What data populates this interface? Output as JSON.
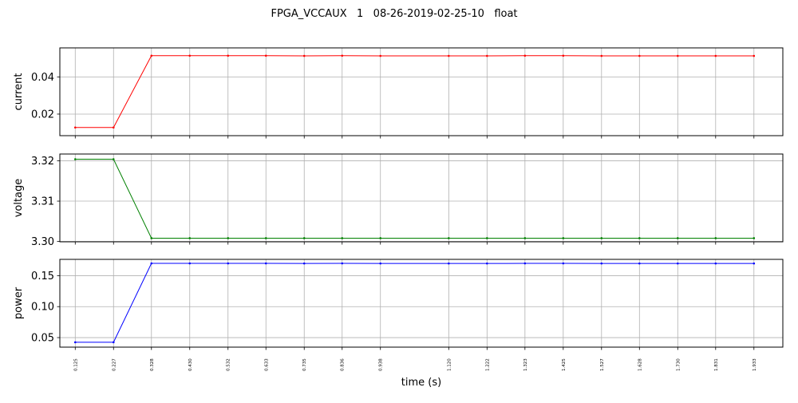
{
  "chart_data": {
    "type": "line",
    "title": "FPGA_VCCAUX   1   08-26-2019-02-25-10   float",
    "xlabel": "time (s)",
    "x": [
      0.125,
      0.227,
      0.328,
      0.43,
      0.532,
      0.633,
      0.735,
      0.836,
      0.938,
      1.12,
      1.222,
      1.323,
      1.425,
      1.527,
      1.628,
      1.73,
      1.831,
      1.933
    ],
    "x_tick_labels": [
      "0.125",
      "0.227",
      "0.328",
      "0.430",
      "0.532",
      "0.633",
      "0.735",
      "0.836",
      "0.938",
      "1.120",
      "1.222",
      "1.323",
      "1.425",
      "1.527",
      "1.628",
      "1.730",
      "1.831",
      "1.933"
    ],
    "xlim": [
      0.084,
      2.01
    ],
    "grid": true,
    "subplots": [
      {
        "ylabel": "current",
        "color": "#ff0000",
        "ylim": [
          0.0084,
          0.0556
        ],
        "yticks": [
          0.02,
          0.04
        ],
        "ytick_labels": [
          "0.02",
          "0.04"
        ],
        "values": [
          0.0128,
          0.0128,
          0.0514,
          0.0514,
          0.0514,
          0.0514,
          0.0513,
          0.0514,
          0.0513,
          0.0513,
          0.0513,
          0.0514,
          0.0514,
          0.0513,
          0.0513,
          0.0513,
          0.0513,
          0.0513
        ]
      },
      {
        "ylabel": "voltage",
        "color": "#008000",
        "ylim": [
          3.2999,
          3.3217
        ],
        "yticks": [
          3.3,
          3.31,
          3.32
        ],
        "ytick_labels": [
          "3.30",
          "3.31",
          "3.32"
        ],
        "values": [
          3.3204,
          3.3204,
          3.3008,
          3.3008,
          3.3008,
          3.3008,
          3.3008,
          3.3008,
          3.3008,
          3.3008,
          3.3008,
          3.3008,
          3.3008,
          3.3008,
          3.3008,
          3.3008,
          3.3008,
          3.3008
        ]
      },
      {
        "ylabel": "power",
        "color": "#0000ff",
        "ylim": [
          0.0346,
          0.1763
        ],
        "yticks": [
          0.05,
          0.1,
          0.15
        ],
        "ytick_labels": [
          "0.05",
          "0.10",
          "0.15"
        ],
        "values": [
          0.0425,
          0.0425,
          0.1698,
          0.1698,
          0.1698,
          0.1698,
          0.1697,
          0.1698,
          0.1697,
          0.1697,
          0.1697,
          0.1698,
          0.1698,
          0.1697,
          0.1697,
          0.1697,
          0.1697,
          0.1697
        ]
      }
    ]
  }
}
